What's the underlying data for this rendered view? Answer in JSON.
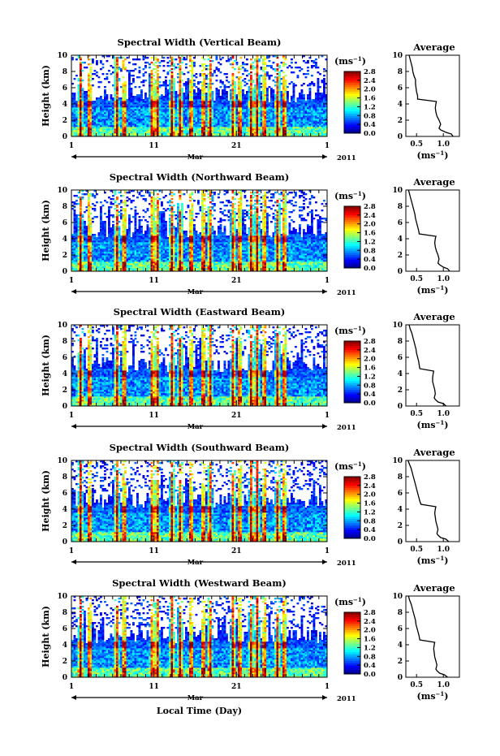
{
  "figure": {
    "x_axis_label": "Local Time (Day)",
    "month_label": "Mar",
    "year_label": "2011",
    "day_ticks": [
      "1",
      "11",
      "21",
      "1"
    ]
  },
  "chart_data": [
    {
      "type": "heatmap",
      "title": "Spectral Width (Vertical Beam)",
      "ylabel": "Height (km)",
      "ylim": [
        0,
        10
      ],
      "yticks": [
        "0",
        "2",
        "4",
        "6",
        "8",
        "10"
      ],
      "xlim": [
        1,
        32
      ],
      "colorbar": {
        "unit": "(ms",
        "unit_exp": "−1",
        "unit_close": ")",
        "range": [
          0.0,
          2.8
        ],
        "ticks": [
          "0.0",
          "0.4",
          "0.8",
          "1.2",
          "1.6",
          "2.0",
          "2.4",
          "2.8"
        ]
      },
      "average_profile": {
        "title": "Average",
        "xlabel": "(ms",
        "xlabel_exp": "−1",
        "xlabel_close": ")",
        "xticks": [
          "0.5",
          "1.0"
        ],
        "xlim": [
          0.3,
          1.3
        ],
        "yticks": [
          "0",
          "2",
          "4",
          "6",
          "8",
          "10"
        ],
        "heights": [
          0.0,
          0.3,
          0.5,
          0.8,
          1.0,
          1.5,
          2.0,
          2.5,
          3.0,
          3.5,
          4.0,
          4.3,
          4.6,
          5.0,
          5.5,
          6.0,
          6.5,
          7.0,
          7.5,
          8.0,
          8.5,
          9.0,
          9.5,
          10.0
        ],
        "values": [
          1.18,
          1.15,
          1.05,
          0.95,
          0.92,
          0.95,
          0.92,
          0.88,
          0.86,
          0.85,
          0.86,
          0.87,
          0.52,
          0.52,
          0.5,
          0.49,
          0.48,
          0.48,
          0.45,
          0.43,
          0.42,
          0.4,
          0.38,
          0.36
        ]
      }
    },
    {
      "type": "heatmap",
      "title": "Spectral Width (Northward Beam)",
      "ylabel": "Height (km)",
      "ylim": [
        0,
        10
      ],
      "yticks": [
        "0",
        "2",
        "4",
        "6",
        "8",
        "10"
      ],
      "xlim": [
        1,
        32
      ],
      "colorbar": {
        "unit": "(ms",
        "unit_exp": "−1",
        "unit_close": ")",
        "range": [
          0.0,
          2.8
        ],
        "ticks": [
          "0.0",
          "0.4",
          "0.8",
          "1.2",
          "1.6",
          "2.0",
          "2.4",
          "2.8"
        ]
      },
      "average_profile": {
        "title": "Average",
        "xlabel": "(ms",
        "xlabel_exp": "−1",
        "xlabel_close": ")",
        "xticks": [
          "0.5",
          "1.0"
        ],
        "xlim": [
          0.3,
          1.3
        ],
        "yticks": [
          "0",
          "2",
          "4",
          "6",
          "8",
          "10"
        ],
        "heights": [
          0.0,
          0.3,
          0.5,
          0.8,
          1.0,
          1.5,
          2.0,
          2.5,
          3.0,
          3.5,
          4.0,
          4.3,
          4.6,
          5.0,
          5.5,
          6.0,
          6.5,
          7.0,
          7.5,
          8.0,
          8.5,
          9.0,
          9.5,
          10.0
        ],
        "values": [
          1.12,
          1.08,
          1.0,
          0.93,
          0.9,
          0.92,
          0.9,
          0.87,
          0.85,
          0.84,
          0.85,
          0.86,
          0.55,
          0.54,
          0.52,
          0.5,
          0.48,
          0.47,
          0.45,
          0.43,
          0.41,
          0.39,
          0.37,
          0.35
        ]
      }
    },
    {
      "type": "heatmap",
      "title": "Spectral Width (Eastward Beam)",
      "ylabel": "Height (km)",
      "ylim": [
        0,
        10
      ],
      "yticks": [
        "0",
        "2",
        "4",
        "6",
        "8",
        "10"
      ],
      "xlim": [
        1,
        32
      ],
      "colorbar": {
        "unit": "(ms",
        "unit_exp": "−1",
        "unit_close": ")",
        "range": [
          0.0,
          2.8
        ],
        "ticks": [
          "0.0",
          "0.4",
          "0.8",
          "1.2",
          "1.6",
          "2.0",
          "2.4",
          "2.8"
        ]
      },
      "average_profile": {
        "title": "Average",
        "xlabel": "(ms",
        "xlabel_exp": "−1",
        "xlabel_close": ")",
        "xticks": [
          "0.5",
          "1.0"
        ],
        "xlim": [
          0.3,
          1.3
        ],
        "yticks": [
          "0",
          "2",
          "4",
          "6",
          "8",
          "10"
        ],
        "heights": [
          0.0,
          0.3,
          0.5,
          0.8,
          1.0,
          1.5,
          2.0,
          2.5,
          3.0,
          3.5,
          4.0,
          4.3,
          4.6,
          5.0,
          5.5,
          6.0,
          6.5,
          7.0,
          7.5,
          8.0,
          8.5,
          9.0,
          9.5,
          10.0
        ],
        "values": [
          1.05,
          1.0,
          0.9,
          0.85,
          0.83,
          0.85,
          0.84,
          0.82,
          0.8,
          0.8,
          0.81,
          0.82,
          0.56,
          0.55,
          0.54,
          0.52,
          0.5,
          0.49,
          0.47,
          0.45,
          0.43,
          0.41,
          0.38,
          0.36
        ]
      }
    },
    {
      "type": "heatmap",
      "title": "Spectral Width (Southward Beam)",
      "ylabel": "Height (km)",
      "ylim": [
        0,
        10
      ],
      "yticks": [
        "0",
        "2",
        "4",
        "6",
        "8",
        "10"
      ],
      "xlim": [
        1,
        32
      ],
      "colorbar": {
        "unit": "(ms",
        "unit_exp": "−1",
        "unit_close": ")",
        "range": [
          0.0,
          2.8
        ],
        "ticks": [
          "0.0",
          "0.4",
          "0.8",
          "1.2",
          "1.6",
          "2.0",
          "2.4",
          "2.8"
        ]
      },
      "average_profile": {
        "title": "Average",
        "xlabel": "(ms",
        "xlabel_exp": "−1",
        "xlabel_close": ")",
        "xticks": [
          "0.5",
          "1.0"
        ],
        "xlim": [
          0.3,
          1.3
        ],
        "yticks": [
          "0",
          "2",
          "4",
          "6",
          "8",
          "10"
        ],
        "heights": [
          0.0,
          0.3,
          0.5,
          0.8,
          1.0,
          1.5,
          2.0,
          2.5,
          3.0,
          3.5,
          4.0,
          4.3,
          4.6,
          5.0,
          5.5,
          6.0,
          6.5,
          7.0,
          7.5,
          8.0,
          8.5,
          9.0,
          9.5,
          10.0
        ],
        "values": [
          1.1,
          1.05,
          0.95,
          0.9,
          0.88,
          0.9,
          0.88,
          0.86,
          0.85,
          0.84,
          0.85,
          0.86,
          0.58,
          0.56,
          0.54,
          0.52,
          0.5,
          0.48,
          0.46,
          0.44,
          0.42,
          0.4,
          0.37,
          0.34
        ]
      }
    },
    {
      "type": "heatmap",
      "title": "Spectral Width (Westward Beam)",
      "ylabel": "Height (km)",
      "ylim": [
        0,
        10
      ],
      "yticks": [
        "0",
        "2",
        "4",
        "6",
        "8",
        "10"
      ],
      "xlim": [
        1,
        32
      ],
      "colorbar": {
        "unit": "(ms",
        "unit_exp": "−1",
        "unit_close": ")",
        "range": [
          0.0,
          2.8
        ],
        "ticks": [
          "0.0",
          "0.4",
          "0.8",
          "1.2",
          "1.6",
          "2.0",
          "2.4",
          "2.8"
        ]
      },
      "average_profile": {
        "title": "Average",
        "xlabel": "(ms",
        "xlabel_exp": "−1",
        "xlabel_close": ")",
        "xticks": [
          "0.5",
          "1.0"
        ],
        "xlim": [
          0.3,
          1.3
        ],
        "yticks": [
          "0",
          "2",
          "4",
          "6",
          "8",
          "10"
        ],
        "heights": [
          0.0,
          0.3,
          0.5,
          0.8,
          1.0,
          1.5,
          2.0,
          2.5,
          3.0,
          3.5,
          4.0,
          4.3,
          4.6,
          5.0,
          5.5,
          6.0,
          6.5,
          7.0,
          7.5,
          8.0,
          8.5,
          9.0,
          9.5,
          10.0
        ],
        "values": [
          1.08,
          1.02,
          0.93,
          0.88,
          0.86,
          0.88,
          0.86,
          0.84,
          0.83,
          0.82,
          0.83,
          0.84,
          0.56,
          0.55,
          0.53,
          0.51,
          0.49,
          0.48,
          0.46,
          0.44,
          0.42,
          0.4,
          0.37,
          0.35
        ]
      }
    }
  ]
}
